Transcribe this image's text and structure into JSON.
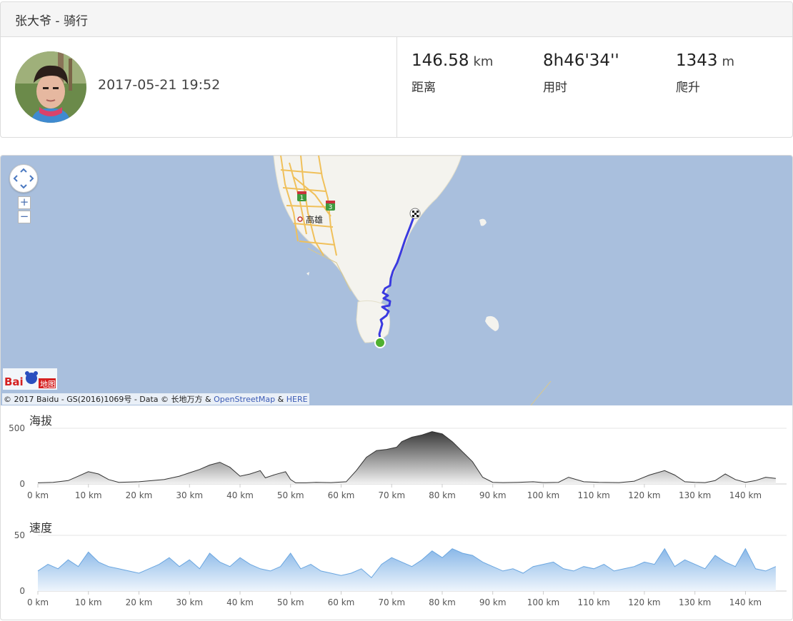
{
  "header": {
    "title": "张大爷 - 骑行"
  },
  "activity": {
    "datetime": "2017-05-21 19:52"
  },
  "stats": [
    {
      "value": "146.58",
      "unit": "km",
      "label": "距离"
    },
    {
      "value": "8h46'34''",
      "unit": "",
      "label": "用时"
    },
    {
      "value": "1343",
      "unit": "m",
      "label": "爬升"
    }
  ],
  "map": {
    "city_label": "高雄",
    "highway_1": "1",
    "highway_3": "3",
    "zoom_in": "+",
    "zoom_out": "−",
    "logo_text": "Bai",
    "logo_text2": "地图",
    "copyright_text": "© 2017 Baidu - GS(2016)1069号 - Data © 长地万方 & ",
    "osm_link": "OpenStreetMap",
    "and_text": " & ",
    "here_link": "HERE"
  },
  "elevation_chart": {
    "title": "海拔",
    "y_ticks": [
      "500",
      "0"
    ],
    "x_ticks": [
      "0 km",
      "10 km",
      "20 km",
      "30 km",
      "40 km",
      "50 km",
      "60 km",
      "70 km",
      "80 km",
      "90 km",
      "100 km",
      "110 km",
      "120 km",
      "130 km",
      "140 km"
    ]
  },
  "speed_chart": {
    "title": "速度",
    "y_ticks": [
      "50",
      "0"
    ],
    "x_ticks": [
      "0 km",
      "10 km",
      "20 km",
      "30 km",
      "40 km",
      "50 km",
      "60 km",
      "70 km",
      "80 km",
      "90 km",
      "100 km",
      "110 km",
      "120 km",
      "130 km",
      "140 km"
    ]
  },
  "chart_data": [
    {
      "type": "area",
      "title": "海拔",
      "xlabel": "",
      "ylabel": "",
      "xlim": [
        0,
        146.58
      ],
      "ylim": [
        0,
        500
      ],
      "grid": true,
      "series": [
        {
          "x": [
            0,
            3,
            6,
            8,
            10,
            12,
            14,
            16,
            20,
            25,
            28,
            30,
            32,
            34,
            36,
            38,
            40,
            42,
            44,
            45,
            47,
            49,
            50,
            51,
            53,
            55,
            58,
            61,
            63,
            65,
            67,
            69,
            71,
            72,
            74,
            76,
            78,
            80,
            82,
            84,
            86,
            88,
            90,
            92,
            95,
            98,
            100,
            103,
            105,
            108,
            111,
            115,
            118,
            121,
            124,
            126,
            128,
            130,
            132,
            134,
            136,
            138,
            140,
            142,
            144,
            146
          ],
          "y": [
            10,
            15,
            30,
            70,
            110,
            90,
            40,
            15,
            20,
            40,
            70,
            100,
            130,
            170,
            195,
            150,
            70,
            90,
            120,
            55,
            85,
            110,
            40,
            10,
            10,
            15,
            12,
            20,
            120,
            240,
            300,
            310,
            330,
            380,
            420,
            440,
            470,
            450,
            380,
            290,
            200,
            60,
            15,
            12,
            15,
            20,
            12,
            15,
            60,
            20,
            15,
            12,
            25,
            80,
            120,
            80,
            20,
            15,
            12,
            30,
            90,
            40,
            15,
            30,
            60,
            50
          ]
        }
      ]
    },
    {
      "type": "area",
      "title": "速度",
      "xlabel": "",
      "ylabel": "",
      "xlim": [
        0,
        146.58
      ],
      "ylim": [
        0,
        50
      ],
      "grid": true,
      "series": [
        {
          "x": [
            0,
            2,
            4,
            6,
            8,
            10,
            12,
            14,
            16,
            18,
            20,
            22,
            24,
            26,
            28,
            30,
            32,
            34,
            36,
            38,
            40,
            42,
            44,
            46,
            48,
            50,
            52,
            54,
            56,
            58,
            60,
            62,
            64,
            66,
            68,
            70,
            72,
            74,
            76,
            78,
            80,
            82,
            84,
            86,
            88,
            90,
            92,
            94,
            96,
            98,
            100,
            102,
            104,
            106,
            108,
            110,
            112,
            114,
            116,
            118,
            120,
            122,
            124,
            126,
            128,
            130,
            132,
            134,
            136,
            138,
            140,
            142,
            144,
            146
          ],
          "y": [
            18,
            24,
            20,
            28,
            22,
            35,
            26,
            22,
            20,
            18,
            16,
            20,
            24,
            30,
            22,
            28,
            20,
            34,
            26,
            22,
            30,
            24,
            20,
            18,
            22,
            34,
            20,
            24,
            18,
            16,
            14,
            16,
            20,
            12,
            24,
            30,
            26,
            22,
            28,
            36,
            30,
            38,
            34,
            32,
            26,
            22,
            18,
            20,
            16,
            22,
            24,
            26,
            20,
            18,
            22,
            20,
            24,
            18,
            20,
            22,
            26,
            24,
            38,
            22,
            28,
            24,
            20,
            32,
            26,
            22,
            38,
            20,
            18,
            22
          ]
        }
      ]
    }
  ]
}
